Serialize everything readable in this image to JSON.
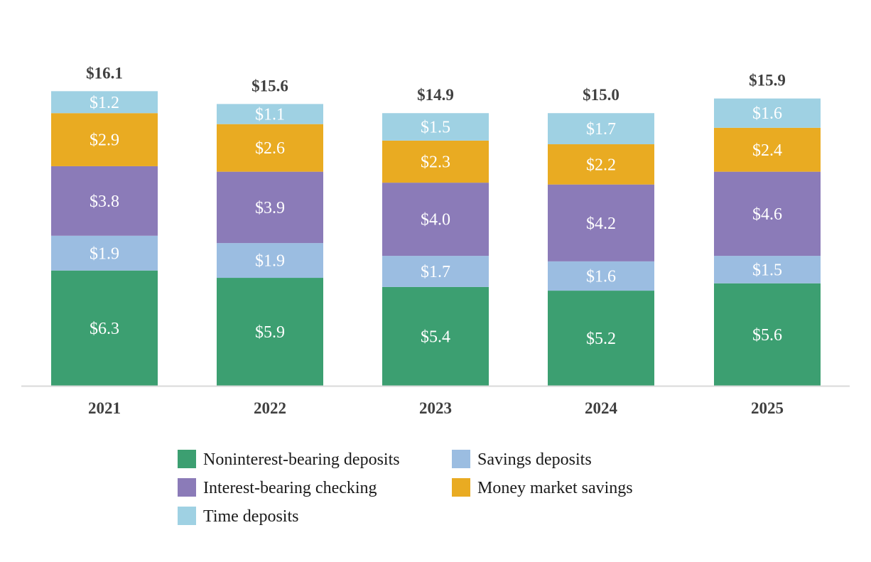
{
  "chart_data": {
    "type": "bar",
    "stacked": true,
    "categories": [
      "2021",
      "2022",
      "2023",
      "2024",
      "2025"
    ],
    "series": [
      {
        "name": "Noninterest-bearing deposits",
        "color": "#3c9f71",
        "values": [
          6.3,
          5.9,
          5.4,
          5.2,
          5.6
        ],
        "labels": [
          "$6.3",
          "$5.9",
          "$5.4",
          "$5.2",
          "$5.6"
        ]
      },
      {
        "name": "Savings deposits",
        "color": "#9bbde1",
        "values": [
          1.9,
          1.9,
          1.7,
          1.6,
          1.5
        ],
        "labels": [
          "$1.9",
          "$1.9",
          "$1.7",
          "$1.6",
          "$1.5"
        ]
      },
      {
        "name": "Interest-bearing checking",
        "color": "#8b7bb8",
        "values": [
          3.8,
          3.9,
          4.0,
          4.2,
          4.6
        ],
        "labels": [
          "$3.8",
          "$3.9",
          "$4.0",
          "$4.2",
          "$4.6"
        ]
      },
      {
        "name": "Money market savings",
        "color": "#e9ab22",
        "values": [
          2.9,
          2.6,
          2.3,
          2.2,
          2.4
        ],
        "labels": [
          "$2.9",
          "$2.6",
          "$2.3",
          "$2.2",
          "$2.4"
        ]
      },
      {
        "name": "Time deposits",
        "color": "#9fd1e3",
        "values": [
          1.2,
          1.1,
          1.5,
          1.7,
          1.6
        ],
        "labels": [
          "$1.2",
          "$1.1",
          "$1.5",
          "$1.7",
          "$1.6"
        ]
      }
    ],
    "totals": [
      16.1,
      15.6,
      14.9,
      15.0,
      15.9
    ],
    "total_labels": [
      "$16.1",
      "$15.6",
      "$14.9",
      "$15.0",
      "$15.9"
    ],
    "ylim": [
      0,
      17.2
    ],
    "grid": false,
    "axis_line_color": "#d9d9d9",
    "legend_position": "bottom",
    "legend_order": [
      "Noninterest-bearing deposits",
      "Savings deposits",
      "Interest-bearing checking",
      "Money market savings",
      "Time deposits"
    ]
  }
}
